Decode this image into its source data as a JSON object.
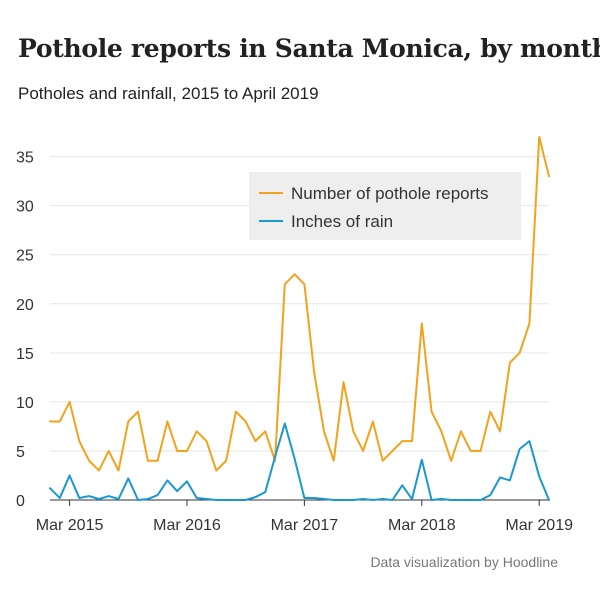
{
  "header": {
    "title": "Pothole reports in Santa Monica, by month",
    "subtitle": "Potholes and rainfall, 2015 to April 2019"
  },
  "footer": {
    "credit": "Data visualization by Hoodline"
  },
  "colors": {
    "potholes": "#f2a21c",
    "rain": "#1998d1",
    "grid": "#e6e6e6",
    "legend_bg": "#eeeeee"
  },
  "chart_data": {
    "type": "line",
    "title": "Pothole reports in Santa Monica, by month",
    "subtitle": "Potholes and rainfall, 2015 to April 2019",
    "xlabel": "",
    "ylabel": "",
    "ylim": [
      0,
      37
    ],
    "yticks": [
      0,
      5,
      10,
      15,
      20,
      25,
      30,
      35
    ],
    "grid": true,
    "legend_position": "top-right",
    "x_start": "Jan 2015",
    "xtick_labels": [
      {
        "label": "Mar 2015",
        "index": 2
      },
      {
        "label": "Mar 2016",
        "index": 14
      },
      {
        "label": "Mar 2017",
        "index": 26
      },
      {
        "label": "Mar 2018",
        "index": 38
      },
      {
        "label": "Mar 2019",
        "index": 50
      }
    ],
    "series": [
      {
        "name": "Number of pothole reports",
        "color": "#f2a21c",
        "values": [
          8,
          8,
          10,
          6,
          4,
          3,
          5,
          3,
          8,
          9,
          4,
          4,
          8,
          5,
          5,
          7,
          6,
          3,
          4,
          9,
          8,
          6,
          7,
          4,
          22,
          23,
          22,
          13,
          7,
          4,
          12,
          7,
          5,
          8,
          4,
          5,
          6,
          6,
          18,
          9,
          7,
          4,
          7,
          5,
          5,
          9,
          7,
          14,
          15,
          18,
          37,
          33
        ]
      },
      {
        "name": "Inches of rain",
        "color": "#1998d1",
        "values": [
          1.2,
          0.2,
          2.5,
          0.2,
          0.4,
          0.1,
          0.4,
          0.1,
          2.2,
          0.0,
          0.1,
          0.5,
          2.0,
          0.9,
          1.9,
          0.2,
          0.1,
          0.0,
          0.0,
          0.0,
          0.0,
          0.3,
          0.8,
          4.4,
          7.8,
          4.2,
          0.2,
          0.2,
          0.1,
          0.0,
          0.0,
          0.0,
          0.1,
          0.0,
          0.1,
          0.0,
          1.5,
          0.1,
          4.1,
          0.0,
          0.1,
          0.0,
          0.0,
          0.0,
          0.0,
          0.5,
          2.3,
          2.0,
          5.2,
          6.0,
          2.4,
          0.0
        ]
      }
    ]
  }
}
